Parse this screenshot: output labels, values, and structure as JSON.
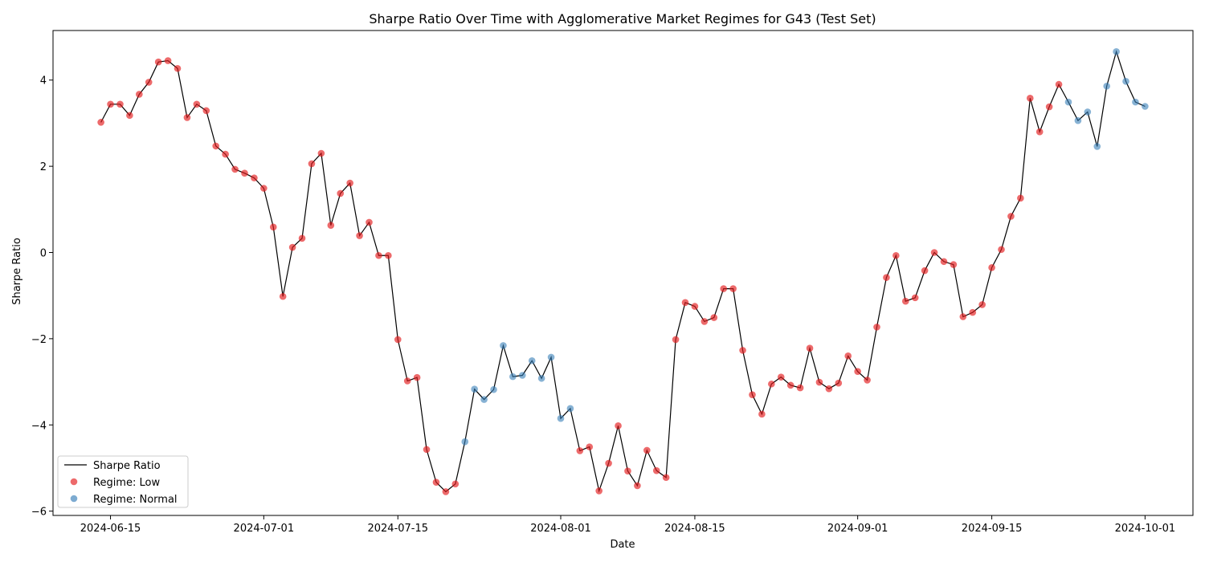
{
  "chart_data": {
    "type": "line",
    "title": "Sharpe Ratio Over Time with Agglomerative Market Regimes for G43 (Test Set)",
    "xlabel": "Date",
    "ylabel": "Sharpe Ratio",
    "x_range": [
      "2024-06-09",
      "2024-10-06"
    ],
    "ylim": [
      -6.1,
      5.15
    ],
    "x_ticks": [
      "2024-06-15",
      "2024-07-01",
      "2024-07-15",
      "2024-08-01",
      "2024-08-15",
      "2024-09-01",
      "2024-09-15",
      "2024-10-01"
    ],
    "y_ticks": [
      -6,
      -4,
      -2,
      0,
      2,
      4
    ],
    "y_tick_labels": [
      "−6",
      "−4",
      "−2",
      "0",
      "2",
      "4"
    ],
    "grid": false,
    "legend_placement": "lower-left",
    "colors": {
      "line": "#000000",
      "Low": "#e41a1c",
      "Normal": "#377eb8"
    },
    "legend": [
      {
        "label": "Sharpe Ratio",
        "kind": "line"
      },
      {
        "label": "Regime: Low",
        "kind": "marker",
        "regime": "Low"
      },
      {
        "label": "Regime: Normal",
        "kind": "marker",
        "regime": "Normal"
      }
    ],
    "start_date": "2024-06-14",
    "series": [
      {
        "name": "Sharpe Ratio",
        "date_step_days": 1,
        "values": [
          3.02,
          3.44,
          3.44,
          3.18,
          3.67,
          3.95,
          4.42,
          4.45,
          4.27,
          3.13,
          3.44,
          3.29,
          2.47,
          2.28,
          1.93,
          1.84,
          1.73,
          1.49,
          0.59,
          -1.02,
          0.12,
          0.33,
          2.06,
          2.3,
          0.63,
          1.37,
          1.61,
          0.39,
          0.7,
          -0.07,
          -0.07,
          -2.02,
          -2.98,
          -2.9,
          -4.57,
          -5.33,
          -5.55,
          -5.37,
          -4.39,
          -3.17,
          -3.41,
          -3.18,
          -2.16,
          -2.88,
          -2.85,
          -2.51,
          -2.92,
          -2.43,
          -3.85,
          -3.62,
          -4.6,
          -4.51,
          -5.53,
          -4.89,
          -4.02,
          -5.07,
          -5.41,
          -4.59,
          -5.06,
          -5.22,
          -2.02,
          -1.16,
          -1.25,
          -1.6,
          -1.51,
          -0.84,
          -0.84,
          -2.27,
          -3.3,
          -3.75,
          -3.05,
          -2.89,
          -3.08,
          -3.14,
          -2.22,
          -3.01,
          -3.16,
          -3.03,
          -2.4,
          -2.76,
          -2.96,
          -1.73,
          -0.58,
          -0.07,
          -1.13,
          -1.05,
          -0.42,
          0.0,
          -0.21,
          -0.28,
          -1.49,
          -1.39,
          -1.21,
          -0.35,
          0.07,
          0.84,
          1.26,
          3.58,
          2.8,
          3.38,
          3.9,
          3.49,
          3.06,
          3.26,
          2.46,
          3.86,
          4.66,
          3.97,
          3.49,
          3.39
        ]
      },
      {
        "name": "Regime: Low",
        "regime": "Low"
      },
      {
        "name": "Regime: Normal",
        "regime": "Normal"
      }
    ],
    "normal_regime_dates": [
      "2024-07-22",
      "2024-07-23",
      "2024-07-24",
      "2024-07-25",
      "2024-07-26",
      "2024-07-27",
      "2024-07-28",
      "2024-07-29",
      "2024-07-30",
      "2024-07-31",
      "2024-08-01",
      "2024-08-02",
      "2024-09-23",
      "2024-09-24",
      "2024-09-25",
      "2024-09-26",
      "2024-09-27",
      "2024-09-28",
      "2024-09-29",
      "2024-09-30",
      "2024-10-01"
    ]
  }
}
